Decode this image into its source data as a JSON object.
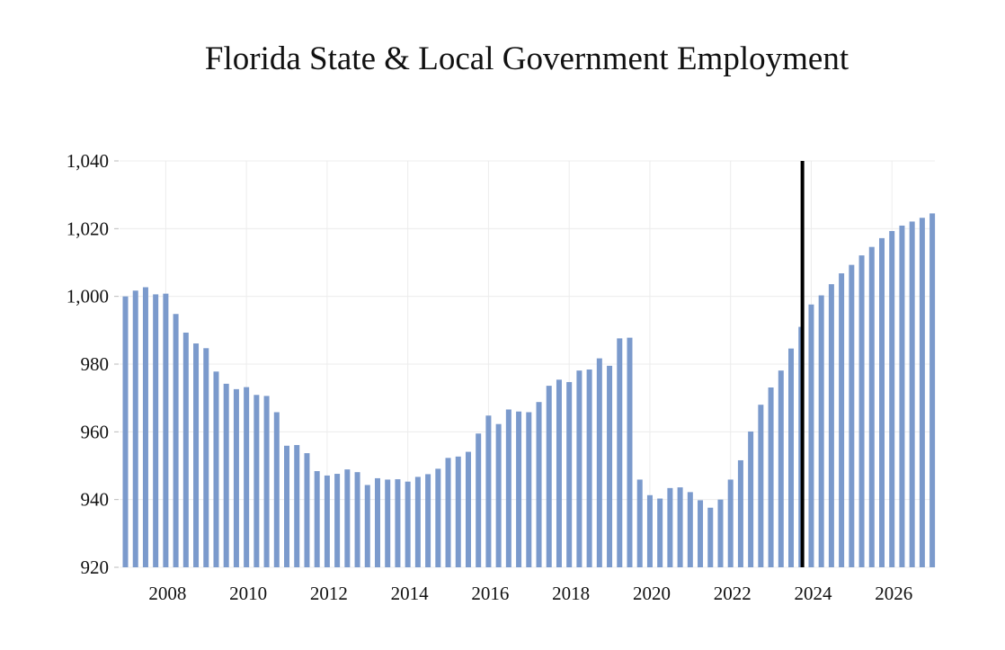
{
  "chart_data": {
    "type": "bar",
    "title": "Florida State & Local Government Employment",
    "xlabel": "",
    "ylabel": "",
    "ylim": [
      920,
      1040
    ],
    "y_ticks": [
      920,
      940,
      960,
      980,
      1000,
      1020,
      1040
    ],
    "y_tick_labels": [
      "920",
      "940",
      "960",
      "980",
      "1,000",
      "1,020",
      "1,040"
    ],
    "x_tick_labels": [
      "2008",
      "2010",
      "2012",
      "2014",
      "2016",
      "2018",
      "2020",
      "2022",
      "2024",
      "2026"
    ],
    "x_tick_years": [
      2008,
      2010,
      2012,
      2014,
      2016,
      2018,
      2020,
      2022,
      2024,
      2026
    ],
    "first_period": 2007.0,
    "period_step": 0.25,
    "bar_color": "#7b9acc",
    "forecast_marker": {
      "label": "forecast start",
      "period": 2023.75,
      "color": "#000000"
    },
    "grid": true,
    "series": [
      {
        "name": "Employment",
        "values": [
          1000.0,
          1001.7,
          1002.7,
          1000.6,
          1000.8,
          994.8,
          989.3,
          986.1,
          984.7,
          977.8,
          974.2,
          972.6,
          973.2,
          970.9,
          970.6,
          965.8,
          955.9,
          956.1,
          953.7,
          948.4,
          947.1,
          947.6,
          948.9,
          948.1,
          944.3,
          946.3,
          945.9,
          946.0,
          945.3,
          946.7,
          947.5,
          949.1,
          952.3,
          952.7,
          954.1,
          959.5,
          964.8,
          962.3,
          966.6,
          966.0,
          965.8,
          968.8,
          973.6,
          975.4,
          974.7,
          978.1,
          978.4,
          981.7,
          979.5,
          987.6,
          987.8,
          945.9,
          941.3,
          940.3,
          943.4,
          943.6,
          942.2,
          939.8,
          937.6,
          940.0,
          945.9,
          951.6,
          960.1,
          968.0,
          973.1,
          978.1,
          984.6,
          991.0,
          997.6,
          1000.3,
          1003.6,
          1006.8,
          1009.3,
          1012.1,
          1014.6,
          1017.2,
          1019.3,
          1020.9,
          1022.1,
          1023.2,
          1024.5
        ]
      }
    ]
  }
}
